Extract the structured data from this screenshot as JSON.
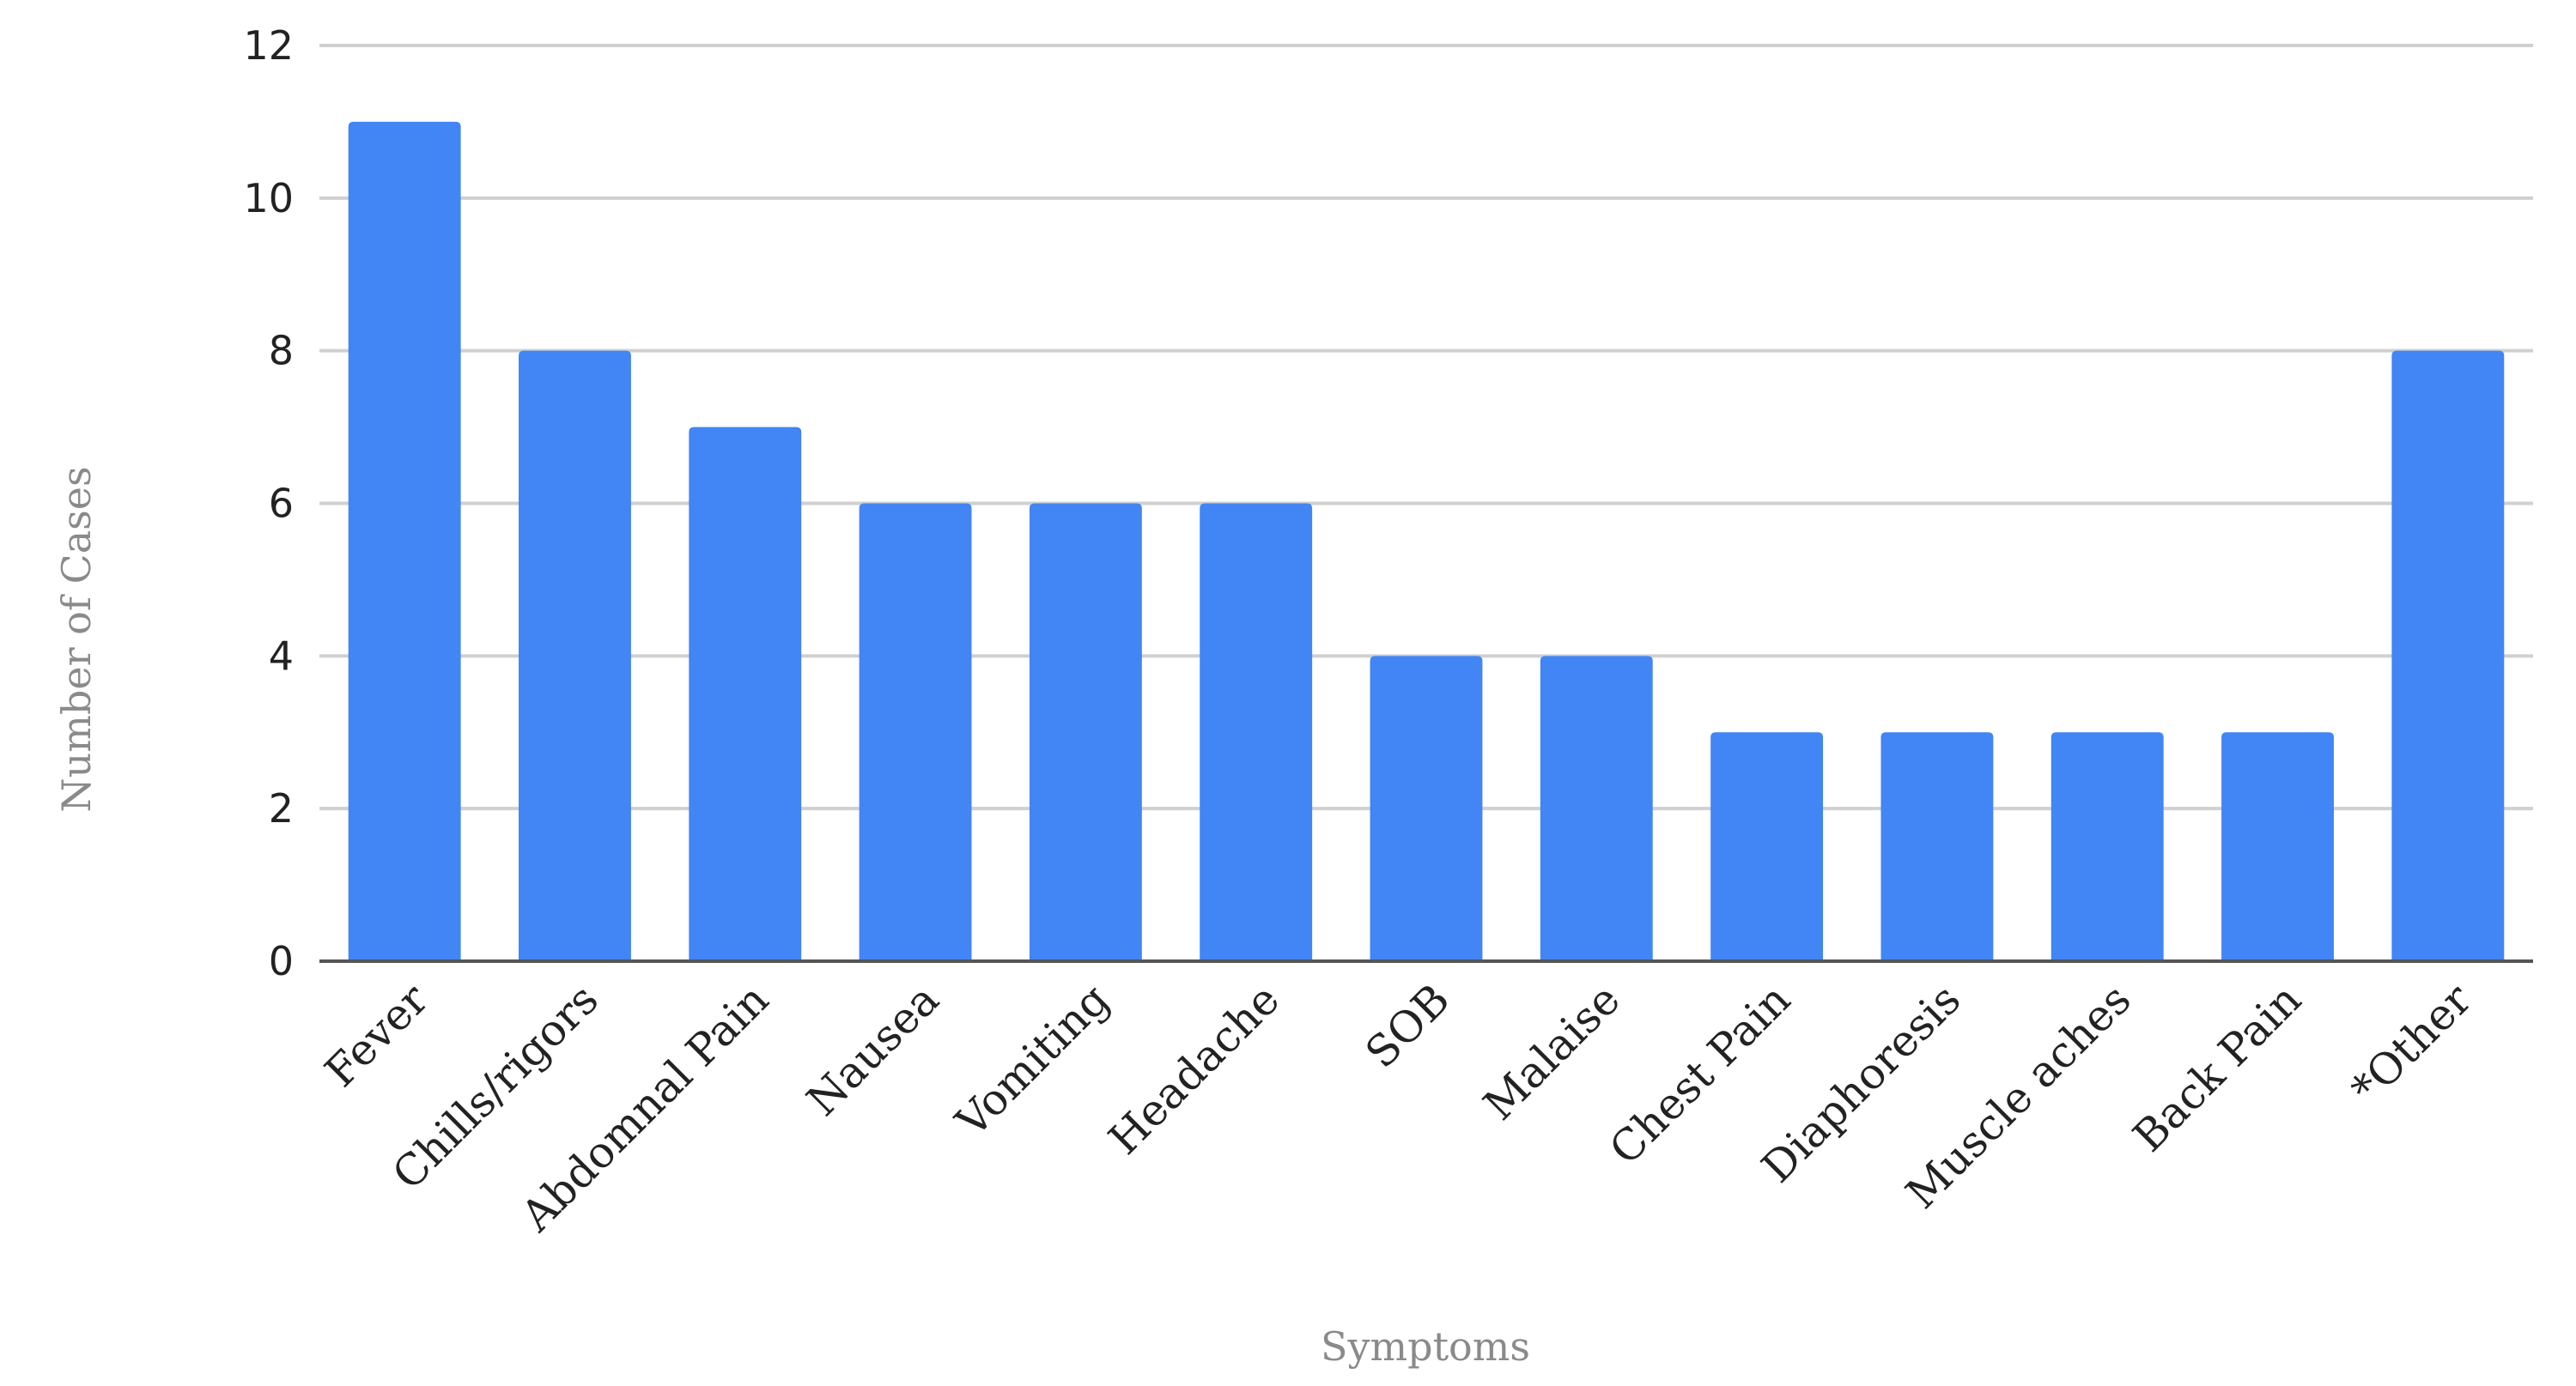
{
  "chart_data": {
    "type": "bar",
    "categories": [
      "Fever",
      "Chills/rigors",
      "Abdomnal Pain",
      "Nausea",
      "Vomiting",
      "Headache",
      "SOB",
      "Malaise",
      "Chest Pain",
      "Diaphoresis",
      "Muscle aches",
      "Back Pain",
      "*Other"
    ],
    "values": [
      11,
      8,
      7,
      6,
      6,
      6,
      4,
      4,
      3,
      3,
      3,
      3,
      8
    ],
    "xlabel": "Symptoms",
    "ylabel": "Number of Cases",
    "ylim": [
      0,
      12
    ],
    "yticks": [
      0,
      2,
      4,
      6,
      8,
      10,
      12
    ],
    "grid": true,
    "legend": "none",
    "bar_color": "#4285f4"
  }
}
